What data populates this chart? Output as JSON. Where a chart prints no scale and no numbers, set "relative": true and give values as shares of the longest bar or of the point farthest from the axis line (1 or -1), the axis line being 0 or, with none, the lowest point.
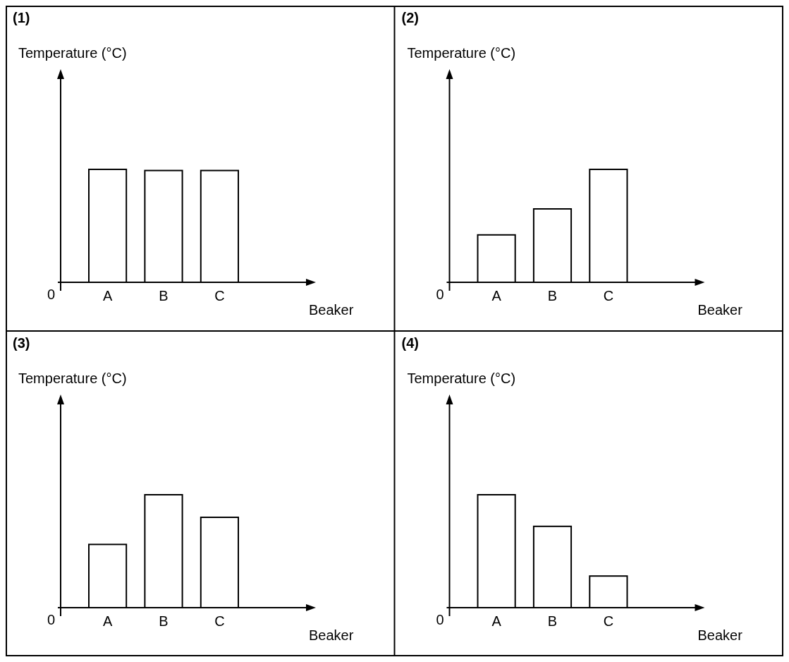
{
  "chart_data": [
    {
      "type": "bar",
      "title": "(1)",
      "ylabel": "Temperature (°C)",
      "xlabel": "Beaker",
      "categories": [
        "A",
        "B",
        "C"
      ],
      "values": [
        1,
        0.99,
        0.99
      ],
      "color": "#ffffff",
      "relative": true,
      "annotations": [
        "0"
      ]
    },
    {
      "type": "bar",
      "title": "(2)",
      "ylabel": "Temperature (°C)",
      "xlabel": "Beaker",
      "categories": [
        "A",
        "B",
        "C"
      ],
      "values": [
        0.42,
        0.65,
        1
      ],
      "color": "#ffffff",
      "relative": true,
      "annotations": [
        "0"
      ]
    },
    {
      "type": "bar",
      "title": "(3)",
      "ylabel": "Temperature (°C)",
      "xlabel": "Beaker",
      "categories": [
        "A",
        "B",
        "C"
      ],
      "values": [
        0.56,
        1,
        0.8
      ],
      "color": "#ffffff",
      "relative": true,
      "annotations": [
        "0"
      ]
    },
    {
      "type": "bar",
      "title": "(4)",
      "ylabel": "Temperature (°C)",
      "xlabel": "Beaker",
      "categories": [
        "A",
        "B",
        "C"
      ],
      "values": [
        1,
        0.72,
        0.28
      ],
      "color": "#ffffff",
      "relative": true,
      "annotations": [
        "0"
      ]
    }
  ]
}
